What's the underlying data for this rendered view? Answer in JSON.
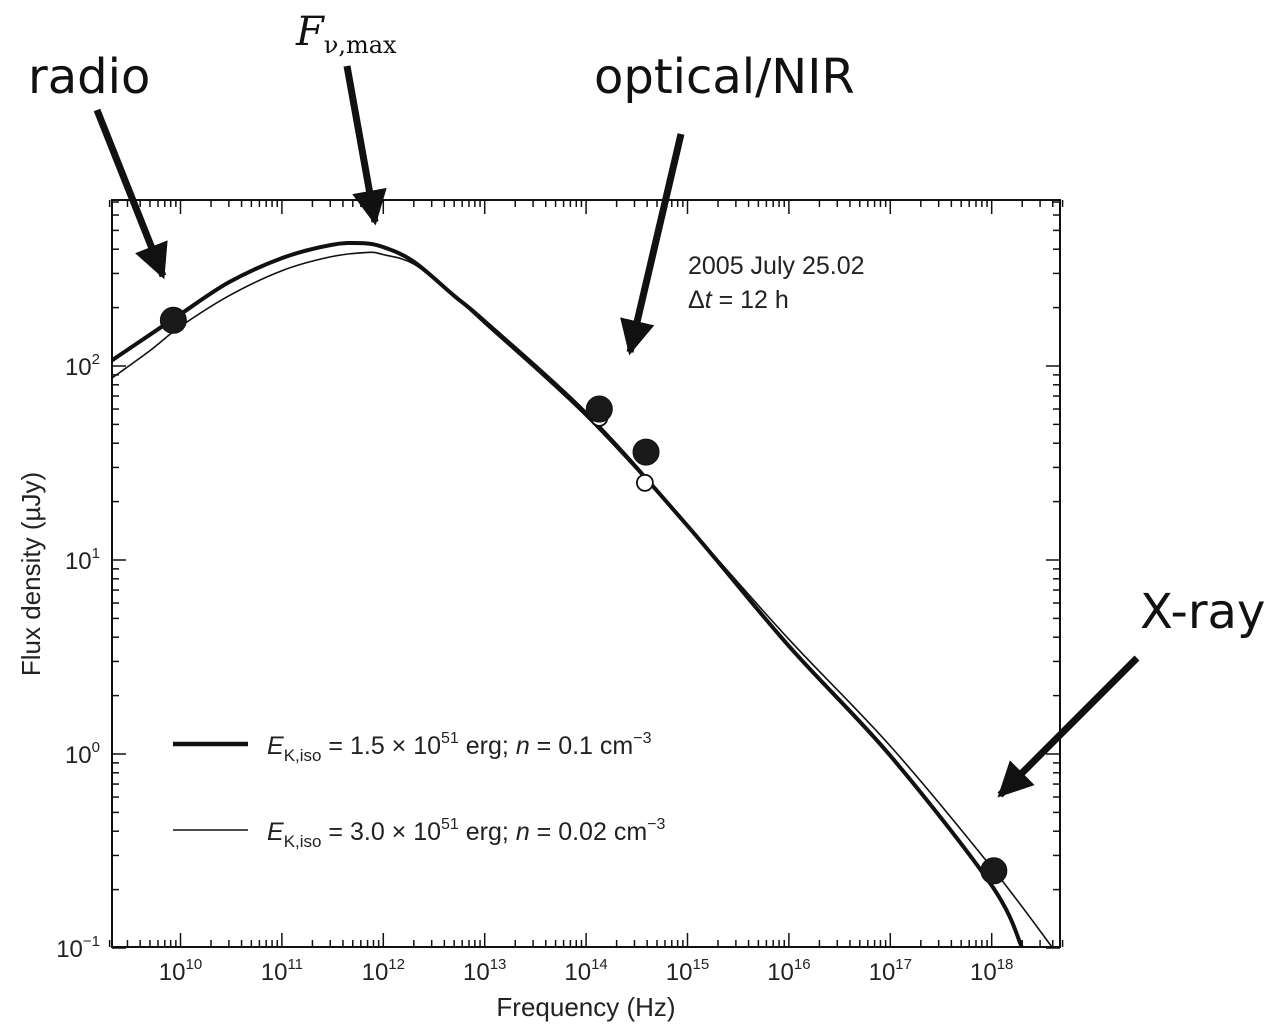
{
  "chart_data": {
    "type": "line",
    "title": "",
    "xlabel": "Frequency  (Hz)",
    "ylabel": "Flux density (µJy)",
    "xscale": "log",
    "yscale": "log",
    "xlim": [
      2000000000.0,
      5e+18
    ],
    "ylim": [
      0.1,
      700
    ],
    "x_ticks": [
      {
        "base": "10",
        "exp": "10",
        "value": 10000000000.0
      },
      {
        "base": "10",
        "exp": "11",
        "value": 100000000000.0
      },
      {
        "base": "10",
        "exp": "12",
        "value": 1000000000000.0
      },
      {
        "base": "10",
        "exp": "13",
        "value": 10000000000000.0
      },
      {
        "base": "10",
        "exp": "14",
        "value": 100000000000000.0
      },
      {
        "base": "10",
        "exp": "15",
        "value": 1000000000000000.0
      },
      {
        "base": "10",
        "exp": "16",
        "value": 1e+16
      },
      {
        "base": "10",
        "exp": "17",
        "value": 1e+17
      },
      {
        "base": "10",
        "exp": "18",
        "value": 1e+18
      }
    ],
    "y_ticks": [
      {
        "base": "10",
        "exp": "−1",
        "value": 0.1
      },
      {
        "base": "10",
        "exp": "0",
        "value": 1
      },
      {
        "base": "10",
        "exp": "1",
        "value": 10
      },
      {
        "base": "10",
        "exp": "2",
        "value": 100
      }
    ],
    "grid": false,
    "annotation": {
      "line1": "2005 July 25.02",
      "line2_prefix": "Δ",
      "line2_var": "t",
      "line2_rest": " = 12 h"
    },
    "series": [
      {
        "name": "E_K,iso = 1.5 × 10^51 erg; n = 0.1 cm^−3",
        "style": "thick",
        "color": "#111111",
        "x": [
          2000000000.0,
          5000000000.0,
          10000000000.0,
          30000000000.0,
          100000000000.0,
          300000000000.0,
          600000000000.0,
          1000000000000.0,
          2000000000000.0,
          5000000000000.0,
          10000000000000.0,
          100000000000000.0,
          1000000000000000.0,
          1e+16,
          1e+17,
          1e+18,
          2e+18
        ],
        "y": [
          105,
          145,
          185,
          270,
          360,
          420,
          430,
          410,
          345,
          230,
          170,
          57,
          15,
          3.6,
          0.98,
          0.21,
          0.1
        ]
      },
      {
        "name": "E_K,iso = 3.0 × 10^51 erg; n = 0.02 cm^−3",
        "style": "thin",
        "color": "#111111",
        "x": [
          2000000000.0,
          5000000000.0,
          10000000000.0,
          30000000000.0,
          100000000000.0,
          300000000000.0,
          700000000000.0,
          1000000000000.0,
          2000000000000.0,
          5000000000000.0,
          10000000000000.0,
          100000000000000.0,
          1000000000000000.0,
          1e+16,
          1e+17,
          1e+18,
          4e+18
        ],
        "y": [
          85,
          120,
          160,
          230,
          310,
          365,
          385,
          375,
          335,
          230,
          165,
          55,
          15,
          3.9,
          1.1,
          0.26,
          0.1
        ]
      }
    ],
    "points_filled": [
      {
        "x": 8500000000.0,
        "y": 172
      },
      {
        "x": 135000000000000.0,
        "y": 60
      },
      {
        "x": 390000000000000.0,
        "y": 36
      },
      {
        "x": 1.05e+18,
        "y": 0.25
      }
    ],
    "points_open": [
      {
        "x": 135000000000000.0,
        "y": 54
      },
      {
        "x": 380000000000000.0,
        "y": 25
      }
    ],
    "legend": {
      "placement": "lower-left",
      "entries": [
        {
          "E_var": "E",
          "E_sub": "K,iso",
          "eq": " = 1.5 × 10",
          "exp": "51",
          "unit": " erg; ",
          "n_var": "n",
          "n_val": " = 0.1 cm",
          "n_exp": "−3"
        },
        {
          "E_var": "E",
          "E_sub": "K,iso",
          "eq": " = 3.0 × 10",
          "exp": "51",
          "unit": " erg; ",
          "n_var": "n",
          "n_val": " = 0.02 cm",
          "n_exp": "−3"
        }
      ]
    },
    "callouts": {
      "radio": "radio",
      "optical": "optical/NIR",
      "xray": "X-ray",
      "fmax_main": "F",
      "fmax_sub": "ν,max"
    }
  }
}
